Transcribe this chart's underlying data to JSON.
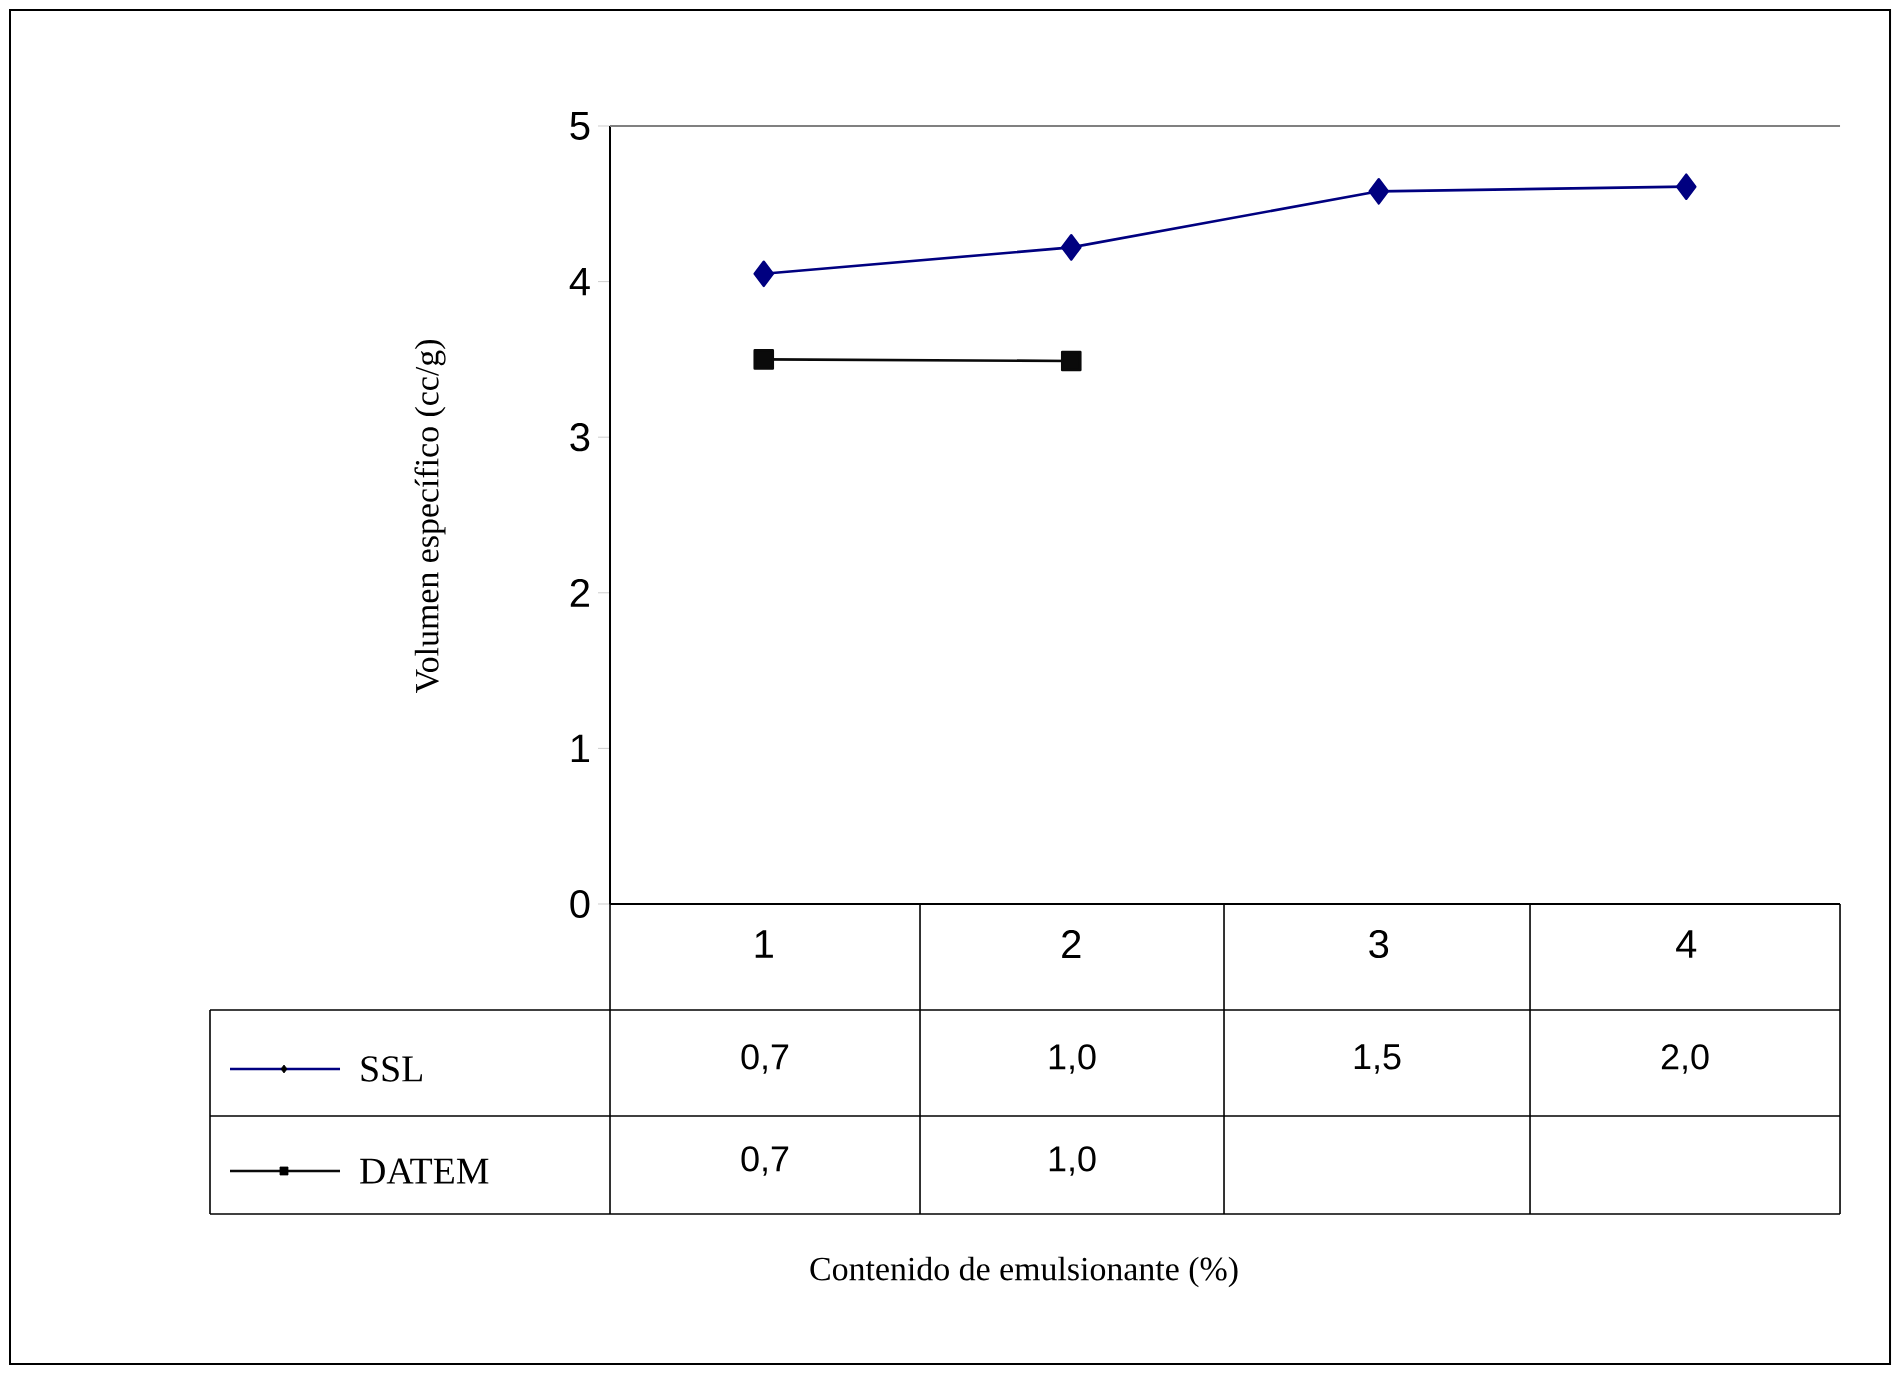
{
  "chart_data": {
    "type": "line",
    "ylabel": "Volumen específico (cc/g)",
    "categories": [
      "1",
      "2",
      "3",
      "4"
    ],
    "series": [
      {
        "name": "SSL",
        "color": "#000080",
        "marker": "diamond",
        "values": [
          4.05,
          4.22,
          4.58,
          4.61
        ]
      },
      {
        "name": "DATEM",
        "color": "#0a0a0a",
        "marker": "square",
        "values": [
          3.5,
          3.49,
          null,
          null
        ]
      }
    ],
    "legend": "bottom left",
    "ylim": [
      0,
      5
    ],
    "yticks": [
      0,
      1,
      2,
      3,
      4,
      5
    ],
    "grid": false,
    "line_style": "solid",
    "annotations": [
      "0,7",
      "1,0",
      "1,5",
      "2,0",
      "0,7",
      "1,0",
      "Contenido de emulsionante (%)"
    ]
  }
}
